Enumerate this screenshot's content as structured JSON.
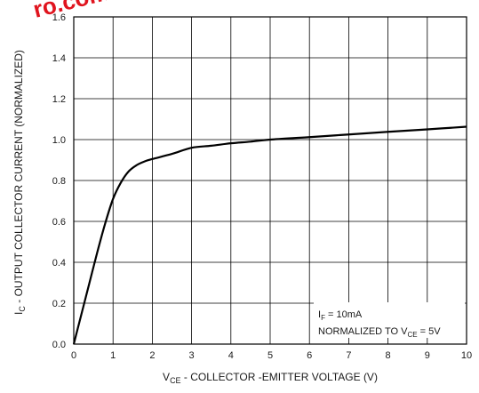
{
  "chart_data": {
    "type": "line",
    "xlabel": {
      "main": "V",
      "sub": "CE",
      "rest": " - COLLECTOR -EMITTER VOLTAGE (V)"
    },
    "ylabel": {
      "main": "I",
      "sub": "C",
      "rest": " - OUTPUT COLLECTOR CURRENT (NORMALIZED)"
    },
    "xlim": [
      0,
      10
    ],
    "ylim": [
      0,
      1.6
    ],
    "x_ticks": [
      "0",
      "1",
      "2",
      "3",
      "4",
      "5",
      "6",
      "7",
      "8",
      "9",
      "10"
    ],
    "y_ticks": [
      "0.0",
      "0.2",
      "0.4",
      "0.6",
      "0.8",
      "1.0",
      "1.2",
      "1.4",
      "1.6"
    ],
    "grid": true,
    "series": [
      {
        "x": [
          0,
          0.2,
          0.4,
          0.6,
          0.8,
          1.0,
          1.2,
          1.4,
          1.6,
          1.8,
          2.0,
          2.5,
          3.0,
          3.5,
          4.0,
          4.5,
          5.0,
          6.0,
          7.0,
          8.0,
          9.0,
          10.0
        ],
        "y": [
          0.0,
          0.15,
          0.3,
          0.45,
          0.59,
          0.71,
          0.79,
          0.845,
          0.875,
          0.893,
          0.905,
          0.93,
          0.96,
          0.97,
          0.982,
          0.99,
          1.0,
          1.012,
          1.025,
          1.038,
          1.05,
          1.063
        ]
      }
    ],
    "annotations": [
      {
        "main": "I",
        "sub": "F",
        "rest": " = 10mA"
      },
      {
        "main": "NORMALIZED TO V",
        "sub": "CE",
        "rest": " = 5V"
      }
    ],
    "watermark": "ro.com"
  },
  "colors": {
    "line": "#000000",
    "grid": "#000000",
    "watermark": "#e0141e"
  }
}
